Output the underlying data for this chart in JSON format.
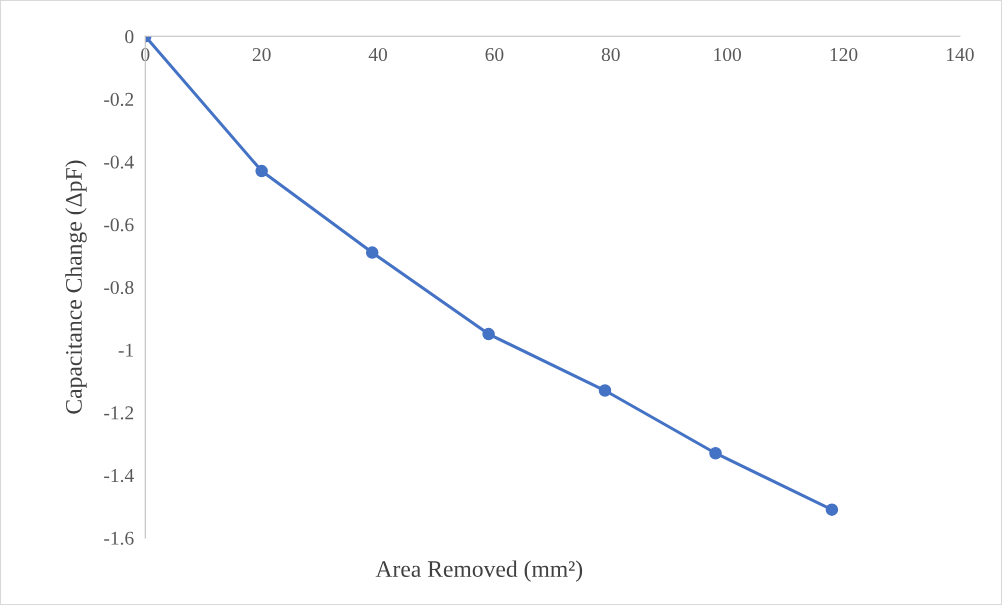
{
  "chart_data": {
    "type": "line",
    "xlabel": "Area Removed (mm²)",
    "ylabel": "Capacitance Change (ΔpF)",
    "x": [
      0,
      20,
      39,
      59,
      79,
      98,
      118
    ],
    "series": [
      {
        "color": "#4472c4",
        "values": [
          0,
          -0.43,
          -0.69,
          -0.95,
          -1.13,
          -1.33,
          -1.51
        ]
      }
    ],
    "xlim": [
      0,
      140
    ],
    "xticks": [
      0,
      20,
      40,
      60,
      80,
      100,
      120,
      140
    ],
    "ylim": [
      -1.6,
      0
    ],
    "yticks": [
      0,
      {
        "value": -0.2,
        "label": "-0.2"
      },
      {
        "value": -0.4,
        "label": "-0.4"
      },
      {
        "value": -0.6,
        "label": "-0.6"
      },
      {
        "value": -0.8,
        "label": "-0.8"
      },
      {
        "value": -1,
        "label": "-1"
      },
      {
        "value": -1.2,
        "label": "-1.2"
      },
      {
        "value": -1.4,
        "label": "-1.4"
      },
      {
        "value": -1.6,
        "label": "-1.6"
      }
    ],
    "grid": false,
    "legend": false,
    "marker": "circle",
    "line_style": "solid"
  }
}
